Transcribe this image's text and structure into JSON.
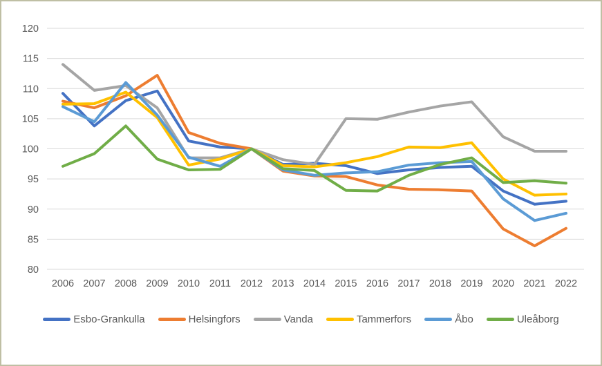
{
  "chart_data": {
    "type": "line",
    "title": "",
    "xlabel": "",
    "ylabel": "",
    "x": [
      2006,
      2007,
      2008,
      2009,
      2010,
      2011,
      2012,
      2013,
      2014,
      2015,
      2016,
      2017,
      2018,
      2019,
      2020,
      2021,
      2022
    ],
    "series": [
      {
        "name": "Esbo-Grankulla",
        "color": "#4472C4",
        "values": [
          109.2,
          103.8,
          108.0,
          109.6,
          101.3,
          100.3,
          100.0,
          97.4,
          97.6,
          97.2,
          95.9,
          96.5,
          96.9,
          97.1,
          93.0,
          90.8,
          91.3
        ]
      },
      {
        "name": "Helsingfors",
        "color": "#ED7D31",
        "values": [
          107.9,
          106.8,
          108.8,
          112.2,
          102.7,
          100.9,
          100.0,
          96.3,
          95.5,
          95.4,
          94.0,
          93.3,
          93.2,
          93.0,
          86.7,
          83.9,
          86.8
        ]
      },
      {
        "name": "Vanda",
        "color": "#A5A5A5",
        "values": [
          114.0,
          109.7,
          110.5,
          106.8,
          98.5,
          98.5,
          100.0,
          98.2,
          97.4,
          105.0,
          104.9,
          106.1,
          107.1,
          107.8,
          102.0,
          99.6,
          99.6
        ]
      },
      {
        "name": "Tammerfors",
        "color": "#FFC000",
        "values": [
          107.4,
          107.5,
          109.4,
          105.2,
          97.3,
          98.3,
          100.0,
          97.2,
          97.0,
          97.7,
          98.7,
          100.3,
          100.2,
          101.0,
          95.0,
          92.3,
          92.5
        ]
      },
      {
        "name": "Åbo",
        "color": "#5B9BD5",
        "values": [
          107.0,
          104.5,
          111.0,
          105.6,
          98.6,
          97.1,
          100.0,
          96.5,
          95.6,
          96.0,
          96.2,
          97.3,
          97.7,
          97.9,
          91.7,
          88.1,
          89.3
        ]
      },
      {
        "name": "Uleåborg",
        "color": "#70AD47",
        "values": [
          97.1,
          99.2,
          103.8,
          98.3,
          96.5,
          96.6,
          100.0,
          96.7,
          96.4,
          93.1,
          93.0,
          95.6,
          97.4,
          98.5,
          94.4,
          94.7,
          94.3
        ]
      }
    ],
    "ylim": [
      80,
      120
    ],
    "ytick_step": 5,
    "y_ticks": [
      120,
      115,
      110,
      105,
      100,
      95,
      90,
      85,
      80
    ],
    "grid": true,
    "legend_position": "bottom"
  },
  "style": {
    "gridline_color": "#D9D9D9",
    "axis_text_color": "#595959",
    "frame_border_color": "#BFBFA4",
    "background_color": "#FFFFFF"
  }
}
